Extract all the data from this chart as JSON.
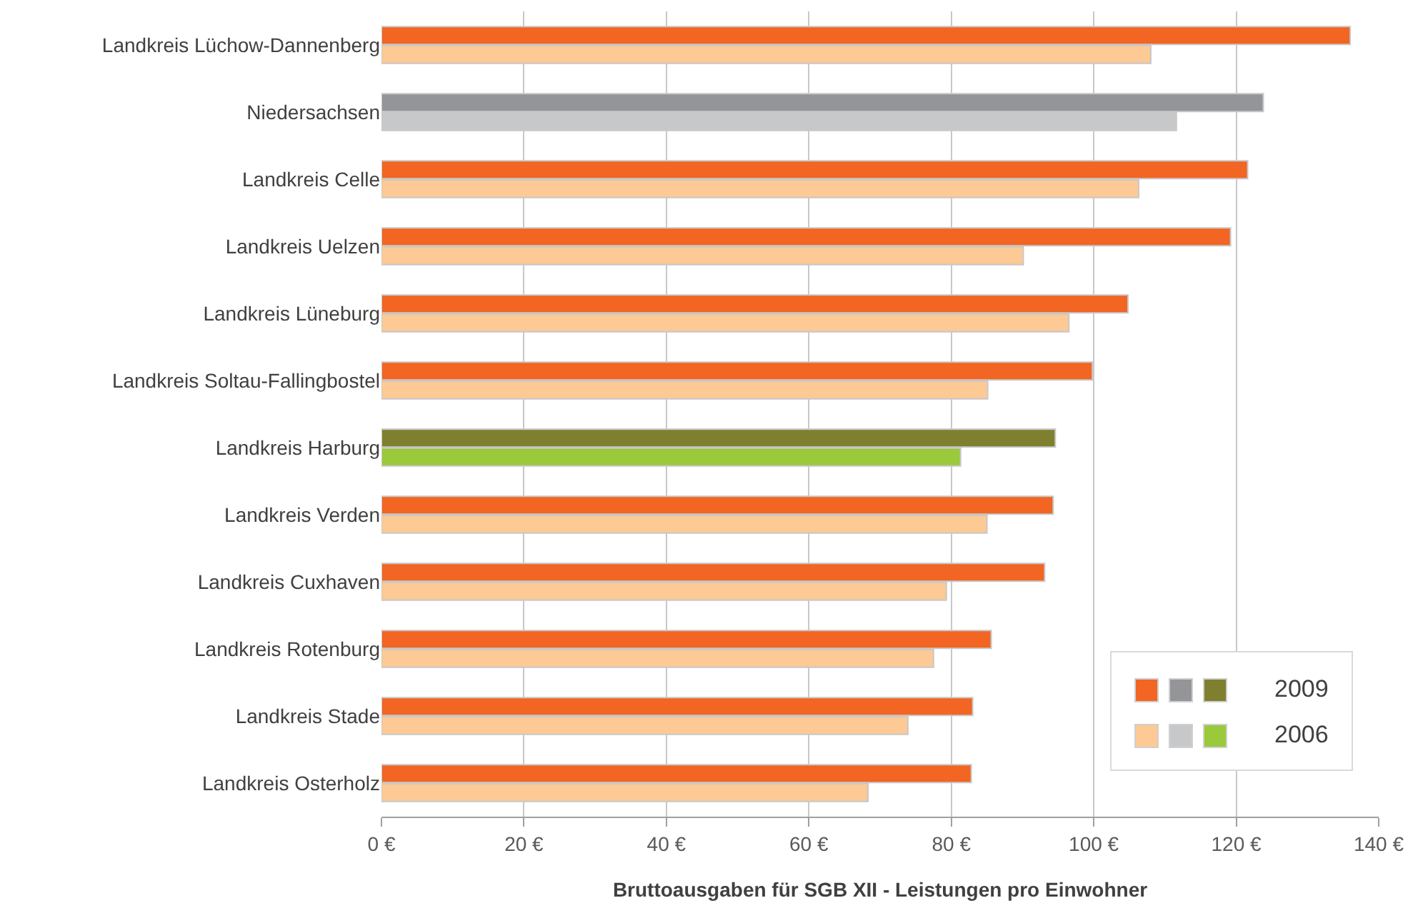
{
  "chart_data": {
    "type": "bar",
    "orientation": "horizontal",
    "xlabel": "Bruttoausgaben für SGB XII - Leistungen pro Einwohner",
    "categories": [
      "Landkreis Lüchow-Dannenberg",
      "Niedersachsen",
      "Landkreis Celle",
      "Landkreis Uelzen",
      "Landkreis Lüneburg",
      "Landkreis Soltau-Fallingbostel",
      "Landkreis Harburg",
      "Landkreis Verden",
      "Landkreis Cuxhaven",
      "Landkreis Rotenburg",
      "Landkreis Stade",
      "Landkreis Osterholz"
    ],
    "series": [
      {
        "name": "2009",
        "colors": [
          "#f26522",
          "#939598",
          "#f26522",
          "#f26522",
          "#f26522",
          "#f26522",
          "#7f7f30",
          "#f26522",
          "#f26522",
          "#f26522",
          "#f26522",
          "#f26522"
        ],
        "values": [
          136,
          123.8,
          121.6,
          119.2,
          104.8,
          99.8,
          94.6,
          94.3,
          93.1,
          85.6,
          83,
          82.8
        ]
      },
      {
        "name": "2006",
        "colors": [
          "#fdc994",
          "#c7c8ca",
          "#fdc994",
          "#fdc994",
          "#fdc994",
          "#fdc994",
          "#9ac93b",
          "#fdc994",
          "#fdc994",
          "#fdc994",
          "#fdc994",
          "#fdc994"
        ],
        "values": [
          108,
          111.6,
          106.3,
          90.1,
          96.5,
          85.1,
          81.3,
          85,
          79.3,
          77.5,
          73.9,
          68.3
        ]
      }
    ],
    "xlim": [
      0,
      140
    ],
    "xticks": [
      {
        "value": 0,
        "label": "0 €"
      },
      {
        "value": 20,
        "label": "20 €"
      },
      {
        "value": 40,
        "label": "40 €"
      },
      {
        "value": 60,
        "label": "60 €"
      },
      {
        "value": 80,
        "label": "80 €"
      },
      {
        "value": 100,
        "label": "100 €"
      },
      {
        "value": 120,
        "label": "120 €"
      },
      {
        "value": 140,
        "label": "140 €"
      }
    ],
    "grid": "x",
    "legend": "bottom right"
  }
}
